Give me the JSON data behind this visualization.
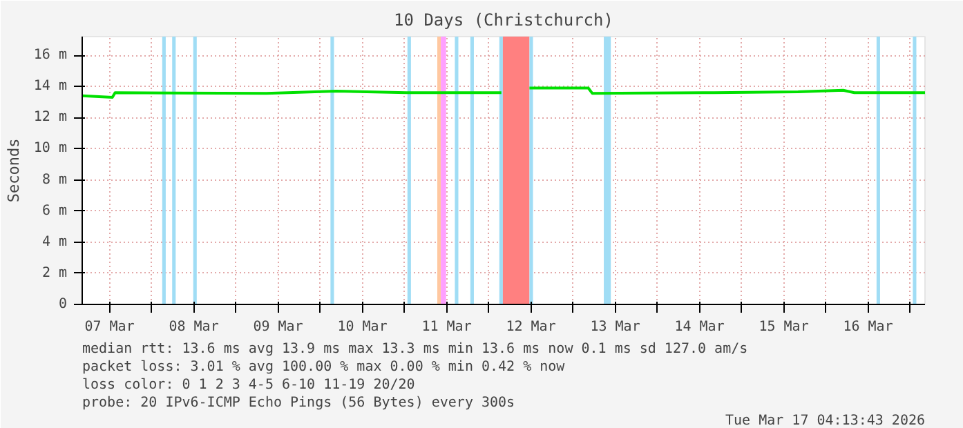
{
  "chart_data": {
    "type": "line",
    "title": "10 Days (Christchurch)",
    "ylabel": "Seconds",
    "x": [
      "2026-03-07T04:15",
      "2026-03-07T12:48",
      "2026-03-07T13:35",
      "2026-03-09T08:40",
      "2026-03-10T04:35",
      "2026-03-11T00:30",
      "2026-03-11T18:25",
      "2026-03-12T03:35",
      "2026-03-12T08:00",
      "2026-03-12T11:35",
      "2026-03-13T04:20",
      "2026-03-13T05:30",
      "2026-03-14T16:10",
      "2026-03-15T16:05",
      "2026-03-16T04:55",
      "2026-03-16T08:05",
      "2026-03-17T04:13"
    ],
    "series": [
      {
        "color": "#00e000",
        "values": [
          13.4,
          13.3,
          13.6,
          13.55,
          13.7,
          13.6,
          13.6,
          13.6,
          null,
          13.9,
          13.9,
          13.55,
          13.6,
          13.65,
          13.75,
          13.6,
          13.6
        ]
      }
    ],
    "xlim": [
      "2026-03-07T04:13",
      "2026-03-17T04:13"
    ],
    "xticks": [
      {
        "value": "2026-03-07T12:00",
        "label": "07 Mar"
      },
      {
        "value": "2026-03-08T00:00",
        "label": null
      },
      {
        "value": "2026-03-08T12:00",
        "label": "08 Mar"
      },
      {
        "value": "2026-03-09T00:00",
        "label": null
      },
      {
        "value": "2026-03-09T12:00",
        "label": "09 Mar"
      },
      {
        "value": "2026-03-10T00:00",
        "label": null
      },
      {
        "value": "2026-03-10T12:00",
        "label": "10 Mar"
      },
      {
        "value": "2026-03-11T00:00",
        "label": null
      },
      {
        "value": "2026-03-11T12:00",
        "label": "11 Mar"
      },
      {
        "value": "2026-03-12T00:00",
        "label": null
      },
      {
        "value": "2026-03-12T12:00",
        "label": "12 Mar"
      },
      {
        "value": "2026-03-13T00:00",
        "label": null
      },
      {
        "value": "2026-03-13T12:00",
        "label": "13 Mar"
      },
      {
        "value": "2026-03-14T00:00",
        "label": null
      },
      {
        "value": "2026-03-14T12:00",
        "label": "14 Mar"
      },
      {
        "value": "2026-03-15T00:00",
        "label": null
      },
      {
        "value": "2026-03-15T12:00",
        "label": "15 Mar"
      },
      {
        "value": "2026-03-16T00:00",
        "label": null
      },
      {
        "value": "2026-03-16T12:00",
        "label": "16 Mar"
      },
      {
        "value": "2026-03-17T00:00",
        "label": null
      }
    ],
    "ylim": [
      0,
      17.2
    ],
    "yticks": [
      0,
      {
        "value": 2,
        "label": "2 m"
      },
      {
        "value": 4,
        "label": "4 m"
      },
      {
        "value": 6,
        "label": "6 m"
      },
      {
        "value": 8,
        "label": "8 m"
      },
      {
        "value": 10,
        "label": "10 m"
      },
      {
        "value": 12,
        "label": "12 m"
      },
      {
        "value": 14,
        "label": "14 m"
      },
      {
        "value": 16,
        "label": "16 m"
      }
    ],
    "bands": [
      {
        "axis": "x",
        "from": "2026-03-08T03:00",
        "to": "2026-03-08T04:00",
        "color": "#a0ddf5"
      },
      {
        "axis": "x",
        "from": "2026-03-08T05:50",
        "to": "2026-03-08T06:50",
        "color": "#a0ddf5"
      },
      {
        "axis": "x",
        "from": "2026-03-08T11:50",
        "to": "2026-03-08T12:50",
        "color": "#a0ddf5"
      },
      {
        "axis": "x",
        "from": "2026-03-10T02:55",
        "to": "2026-03-10T03:55",
        "color": "#a0ddf5"
      },
      {
        "axis": "x",
        "from": "2026-03-11T00:50",
        "to": "2026-03-11T01:50",
        "color": "#a0ddf5"
      },
      {
        "axis": "x",
        "from": "2026-03-11T09:20",
        "to": "2026-03-11T10:20",
        "color": "#ffc8a0"
      },
      {
        "axis": "x",
        "from": "2026-03-11T10:20",
        "to": "2026-03-11T11:50",
        "color": "#ffa0ff"
      },
      {
        "axis": "x",
        "from": "2026-03-11T14:20",
        "to": "2026-03-11T15:20",
        "color": "#a0ddf5"
      },
      {
        "axis": "x",
        "from": "2026-03-11T18:45",
        "to": "2026-03-11T19:45",
        "color": "#a0ddf5"
      },
      {
        "axis": "x",
        "from": "2026-03-12T03:00",
        "to": "2026-03-12T04:00",
        "color": "#a0ddf5"
      },
      {
        "axis": "x",
        "from": "2026-03-12T04:00",
        "to": "2026-03-12T11:35",
        "color": "#ff8080"
      },
      {
        "axis": "x",
        "from": "2026-03-12T11:35",
        "to": "2026-03-12T12:35",
        "color": "#a0ddf5"
      },
      {
        "axis": "x",
        "from": "2026-03-13T08:45",
        "to": "2026-03-13T10:45",
        "color": "#a0ddf5"
      },
      {
        "axis": "x",
        "from": "2026-03-16T14:25",
        "to": "2026-03-16T15:25",
        "color": "#a0ddf5"
      },
      {
        "axis": "x",
        "from": "2026-03-17T00:45",
        "to": "2026-03-17T01:45",
        "color": "#a0ddf5"
      }
    ],
    "grid": true,
    "annotations": [
      "median rtt:  13.6 ms avg  13.9 ms max  13.3 ms min  13.6 ms now  0.1 ms sd  127.0  am/s",
      "packet loss: 3.01 % avg  100.00 % max  0.00 % min  0.42 % now",
      "loss color:   0  1  2  3  4-5  6-10  11-19  20/20",
      "probe:        20 IPv6-ICMP Echo Pings (56 Bytes) every 300s",
      "Tue Mar 17 04:13:43 2026"
    ]
  }
}
